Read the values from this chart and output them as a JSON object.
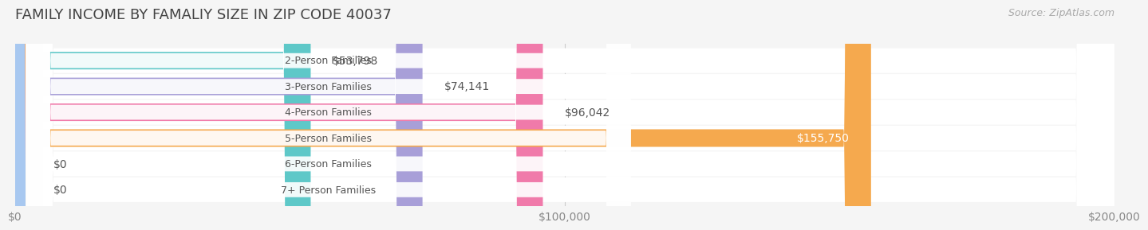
{
  "title": "FAMILY INCOME BY FAMALIY SIZE IN ZIP CODE 40037",
  "source": "Source: ZipAtlas.com",
  "categories": [
    "2-Person Families",
    "3-Person Families",
    "4-Person Families",
    "5-Person Families",
    "6-Person Families",
    "7+ Person Families"
  ],
  "values": [
    53798,
    74141,
    96042,
    155750,
    0,
    0
  ],
  "bar_colors": [
    "#5ec8c8",
    "#a89fd8",
    "#f07aaa",
    "#f5a94e",
    "#f0a0a8",
    "#a8c8f0"
  ],
  "label_colors": [
    "#555555",
    "#555555",
    "#555555",
    "#ffffff",
    "#555555",
    "#555555"
  ],
  "xlim": [
    0,
    200000
  ],
  "xticks": [
    0,
    100000,
    200000
  ],
  "xticklabels": [
    "$0",
    "$100,000",
    "$200,000"
  ],
  "background_color": "#f5f5f5",
  "title_fontsize": 13,
  "tick_fontsize": 10,
  "label_fontsize": 9,
  "source_fontsize": 9
}
